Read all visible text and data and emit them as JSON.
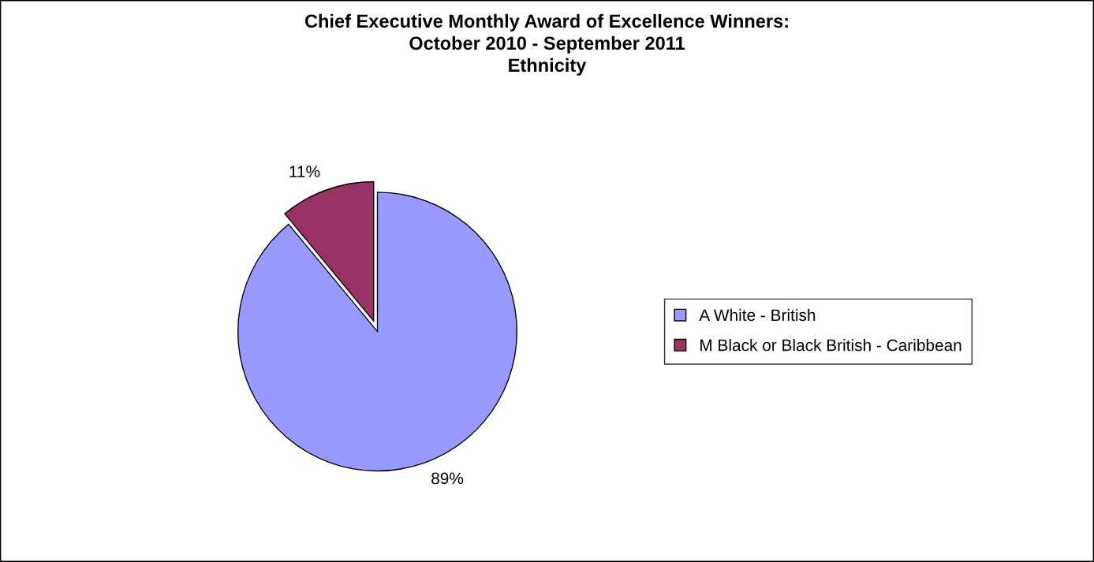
{
  "chart_data": {
    "type": "pie",
    "title": "Chief Executive Monthly Award of Excellence Winners:\nOctober 2010 - September 2011\nEthnicity",
    "categories": [
      "A White - British",
      "M Black or Black British - Caribbean"
    ],
    "values": [
      89,
      11
    ],
    "colors": [
      "#9999ff",
      "#993366"
    ],
    "value_labels": [
      "89%",
      "11%"
    ],
    "legend": "right"
  }
}
